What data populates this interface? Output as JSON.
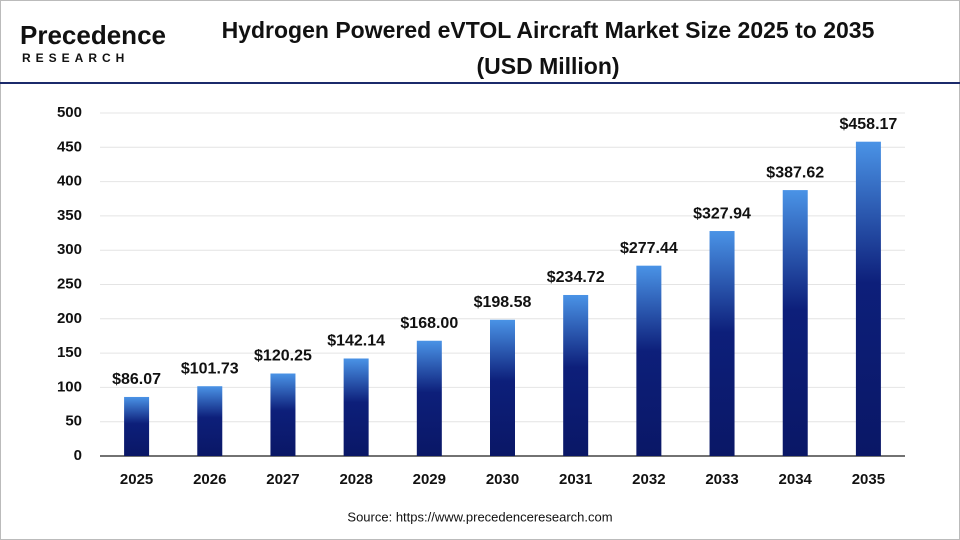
{
  "chart_data": {
    "type": "bar",
    "brand": "Precedence",
    "brand_tagline": "RESEARCH",
    "title": "Hydrogen Powered eVTOL Aircraft Market Size 2025 to 2035",
    "subtitle": "(USD Million)",
    "categories": [
      "2025",
      "2026",
      "2027",
      "2028",
      "2029",
      "2030",
      "2031",
      "2032",
      "2033",
      "2034",
      "2035"
    ],
    "values": [
      86.07,
      101.73,
      120.25,
      142.14,
      168.0,
      198.58,
      234.72,
      277.44,
      327.94,
      387.62,
      458.17
    ],
    "value_labels": [
      "$86.07",
      "$101.73",
      "$120.25",
      "$142.14",
      "$168.00",
      "$198.58",
      "$234.72",
      "$277.44",
      "$327.94",
      "$387.62",
      "$458.17"
    ],
    "color": "#0d1f7a",
    "ylim": [
      0,
      500
    ],
    "yticks": [
      0,
      50,
      100,
      150,
      200,
      250,
      300,
      350,
      400,
      450,
      500
    ],
    "grid": true,
    "source": "Source: https://www.precedenceresearch.com"
  }
}
